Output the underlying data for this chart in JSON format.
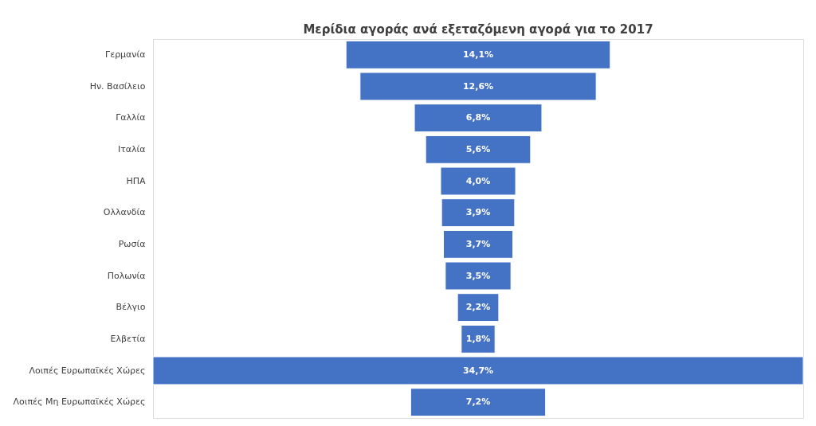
{
  "chart_data": {
    "type": "other",
    "title": "Μερίδια αγοράς ανά εξεταζόμενη αγορά για το 2017",
    "categories": [
      "Γερμανία",
      "Ην. Βασίλειο",
      "Γαλλία",
      "Ιταλία",
      "ΗΠΑ",
      "Ολλανδία",
      "Ρωσία",
      "Πολωνία",
      "Βέλγιο",
      "Ελβετία",
      "Λοιπές Ευρωπαϊκές Χώρες",
      "Λοιπές Μη Ευρωπαϊκές Χώρες"
    ],
    "values": [
      14.1,
      12.6,
      6.8,
      5.6,
      4.0,
      3.9,
      3.7,
      3.5,
      2.2,
      1.8,
      34.7,
      7.2
    ],
    "value_labels": [
      "14,1%",
      "12,6%",
      "6,8%",
      "5,6%",
      "4,0%",
      "3,9%",
      "3,7%",
      "3,5%",
      "2,2%",
      "1,8%",
      "34,7%",
      "7,2%"
    ],
    "color": "#4472c4"
  }
}
